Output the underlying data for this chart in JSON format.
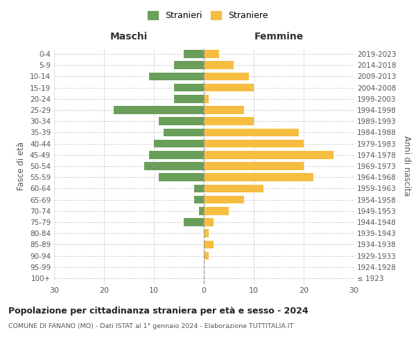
{
  "age_groups": [
    "100+",
    "95-99",
    "90-94",
    "85-89",
    "80-84",
    "75-79",
    "70-74",
    "65-69",
    "60-64",
    "55-59",
    "50-54",
    "45-49",
    "40-44",
    "35-39",
    "30-34",
    "25-29",
    "20-24",
    "15-19",
    "10-14",
    "5-9",
    "0-4"
  ],
  "birth_years": [
    "≤ 1923",
    "1924-1928",
    "1929-1933",
    "1934-1938",
    "1939-1943",
    "1944-1948",
    "1949-1953",
    "1954-1958",
    "1959-1963",
    "1964-1968",
    "1969-1973",
    "1974-1978",
    "1979-1983",
    "1984-1988",
    "1989-1993",
    "1994-1998",
    "1999-2003",
    "2004-2008",
    "2009-2013",
    "2014-2018",
    "2019-2023"
  ],
  "maschi": [
    0,
    0,
    0,
    0,
    0,
    4,
    1,
    2,
    2,
    9,
    12,
    11,
    10,
    8,
    9,
    18,
    6,
    6,
    11,
    6,
    4
  ],
  "femmine": [
    0,
    0,
    1,
    2,
    1,
    2,
    5,
    8,
    12,
    22,
    20,
    26,
    20,
    19,
    10,
    8,
    1,
    10,
    9,
    6,
    3
  ],
  "maschi_color": "#6a9e5b",
  "femmine_color": "#f5be41",
  "grid_color": "#cccccc",
  "title": "Popolazione per cittadinanza straniera per età e sesso - 2024",
  "subtitle": "COMUNE DI FANANO (MO) - Dati ISTAT al 1° gennaio 2024 - Elaborazione TUTTITALIA.IT",
  "xlabel_left": "Maschi",
  "xlabel_right": "Femmine",
  "ylabel_left": "Fasce di età",
  "ylabel_right": "Anni di nascita",
  "legend_maschi": "Stranieri",
  "legend_femmine": "Straniere",
  "xlim": 30
}
